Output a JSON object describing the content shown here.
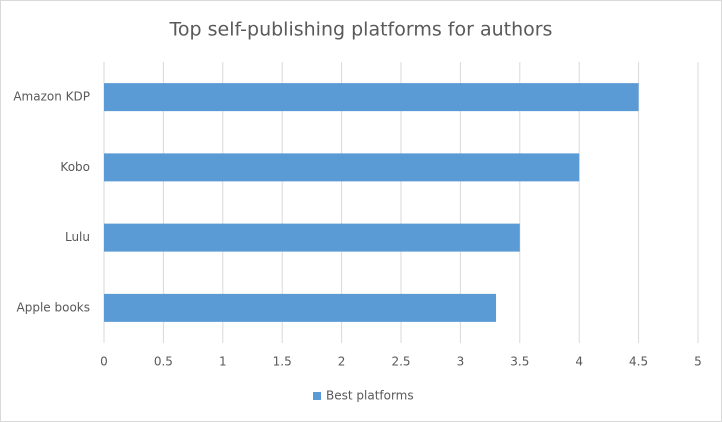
{
  "chart_data": {
    "type": "bar",
    "orientation": "horizontal",
    "title": "Top self-publishing platforms for authors",
    "categories": [
      "Amazon KDP",
      "Kobo",
      "Lulu",
      "Apple books"
    ],
    "series": [
      {
        "name": "Best platforms",
        "color": "#5b9bd5",
        "values": [
          4.5,
          4,
          3.5,
          3.3
        ]
      }
    ],
    "xlim": [
      0,
      5
    ],
    "xticks": [
      0,
      0.5,
      1,
      1.5,
      2,
      2.5,
      3,
      3.5,
      4,
      4.5,
      5
    ],
    "grid": true,
    "legend": "bottom"
  }
}
